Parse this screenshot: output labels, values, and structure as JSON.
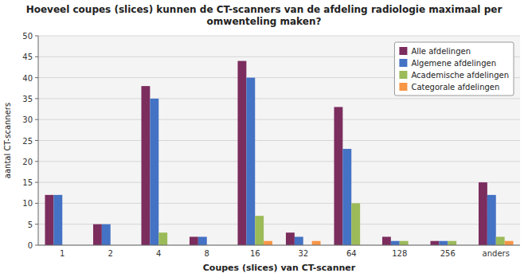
{
  "chart_data": {
    "type": "bar",
    "title": "Hoeveel coupes (slices) kunnen de CT-scanners van de afdeling radiologie maximaal per\nomwenteling maken?",
    "xlabel": "Coupes (slices) van CT-scanner",
    "ylabel": "aantal CT-scanners",
    "categories": [
      "1",
      "2",
      "4",
      "8",
      "16",
      "32",
      "64",
      "128",
      "256",
      "anders"
    ],
    "series": [
      {
        "name": "Alle afdelingen",
        "color": "#7B2D5E",
        "values": [
          12,
          5,
          38,
          2,
          44,
          3,
          33,
          2,
          1,
          15
        ]
      },
      {
        "name": "Algemene afdelingen",
        "color": "#4472C4",
        "values": [
          12,
          5,
          35,
          2,
          40,
          2,
          23,
          1,
          1,
          12
        ]
      },
      {
        "name": "Academische afdelingen",
        "color": "#9BBB59",
        "values": [
          0,
          0,
          3,
          0,
          7,
          0,
          10,
          1,
          1,
          2
        ]
      },
      {
        "name": "Categorale afdelingen",
        "color": "#F79646",
        "values": [
          0,
          0,
          0,
          0,
          1,
          1,
          0,
          0,
          0,
          1
        ]
      }
    ],
    "ylim": [
      0,
      50
    ],
    "yticks": [
      0,
      5,
      10,
      15,
      20,
      25,
      30,
      35,
      40,
      45,
      50
    ],
    "grid": true,
    "legend": "upper right"
  }
}
